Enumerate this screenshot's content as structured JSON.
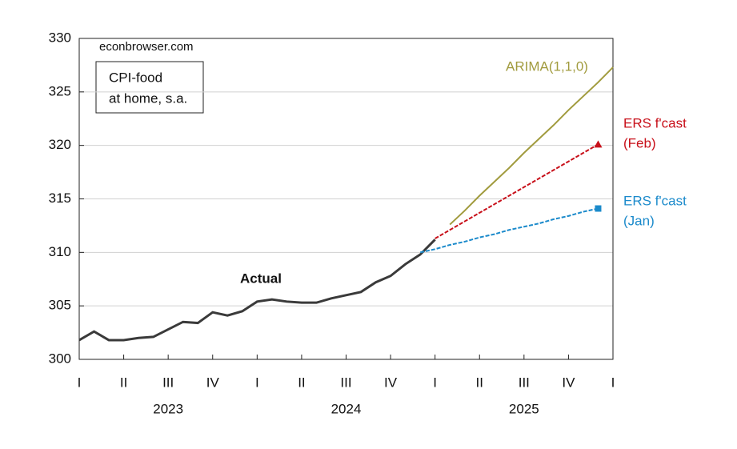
{
  "chart_data": {
    "type": "line",
    "annotations": {
      "source": "econbrowser.com",
      "box_text": [
        "CPI-food",
        "at home, s.a."
      ]
    },
    "x": [
      0,
      1,
      2,
      3,
      4,
      5,
      6,
      7,
      8,
      9,
      10,
      11,
      12,
      13,
      14,
      15,
      16,
      17,
      18,
      19,
      20,
      21,
      22,
      23,
      24,
      25,
      26,
      27,
      28,
      29,
      30,
      31,
      32,
      33,
      34,
      35,
      36
    ],
    "xlim": [
      0,
      36
    ],
    "xticks": [
      {
        "value": 0,
        "label": "I"
      },
      {
        "value": 3,
        "label": "II"
      },
      {
        "value": 6,
        "label": "III"
      },
      {
        "value": 9,
        "label": "IV"
      },
      {
        "value": 12,
        "label": "I"
      },
      {
        "value": 15,
        "label": "II"
      },
      {
        "value": 18,
        "label": "III"
      },
      {
        "value": 21,
        "label": "IV"
      },
      {
        "value": 24,
        "label": "I"
      },
      {
        "value": 27,
        "label": "II"
      },
      {
        "value": 30,
        "label": "III"
      },
      {
        "value": 33,
        "label": "IV"
      },
      {
        "value": 36,
        "label": "I"
      }
    ],
    "year_labels": [
      {
        "value": 6,
        "label": "2023"
      },
      {
        "value": 18,
        "label": "2024"
      },
      {
        "value": 30,
        "label": "2025"
      }
    ],
    "ylim": [
      300,
      330
    ],
    "yticks": [
      300,
      305,
      310,
      315,
      320,
      325,
      330
    ],
    "grid": true,
    "series": [
      {
        "name": [
          "Actual"
        ],
        "color": "#3a3a3a",
        "style": "solid",
        "marker": "none",
        "values": [
          301.8,
          302.6,
          301.8,
          301.8,
          302.0,
          302.1,
          302.8,
          303.5,
          303.4,
          304.4,
          304.1,
          304.5,
          305.4,
          305.6,
          305.4,
          305.3,
          305.3,
          305.7,
          306.0,
          306.3,
          307.2,
          307.8,
          308.9,
          309.8,
          311.2,
          null,
          null,
          null,
          null,
          null,
          null,
          null,
          null,
          null,
          null,
          null,
          null
        ]
      },
      {
        "name": [
          "ARIMA(1,1,0)"
        ],
        "color": "#a19b3e",
        "style": "solid",
        "marker": "none",
        "values": [
          null,
          null,
          null,
          null,
          null,
          null,
          null,
          null,
          null,
          null,
          null,
          null,
          null,
          null,
          null,
          null,
          null,
          null,
          null,
          null,
          null,
          null,
          null,
          null,
          null,
          312.6,
          313.9,
          315.3,
          316.6,
          317.9,
          319.3,
          320.6,
          321.9,
          323.3,
          324.6,
          325.9,
          327.3
        ]
      },
      {
        "name": [
          "ERS f'cast",
          "(Feb)"
        ],
        "color": "#c8101a",
        "style": "dashed",
        "marker": "triangle",
        "values": [
          null,
          null,
          null,
          null,
          null,
          null,
          null,
          null,
          null,
          null,
          null,
          null,
          null,
          null,
          null,
          null,
          null,
          null,
          null,
          null,
          null,
          null,
          null,
          null,
          311.3,
          312.1,
          312.9,
          313.7,
          314.5,
          315.3,
          316.1,
          316.9,
          317.7,
          318.5,
          319.3,
          320.1,
          null
        ]
      },
      {
        "name": [
          "ERS f'cast",
          "(Jan)"
        ],
        "color": "#1b8acb",
        "style": "dashed",
        "marker": "square",
        "values": [
          null,
          null,
          null,
          null,
          null,
          null,
          null,
          null,
          null,
          null,
          null,
          null,
          null,
          null,
          null,
          null,
          null,
          null,
          null,
          null,
          null,
          null,
          null,
          310.0,
          310.3,
          310.7,
          311.0,
          311.4,
          311.7,
          312.1,
          312.4,
          312.7,
          313.1,
          313.4,
          313.8,
          314.1,
          null
        ]
      }
    ]
  }
}
